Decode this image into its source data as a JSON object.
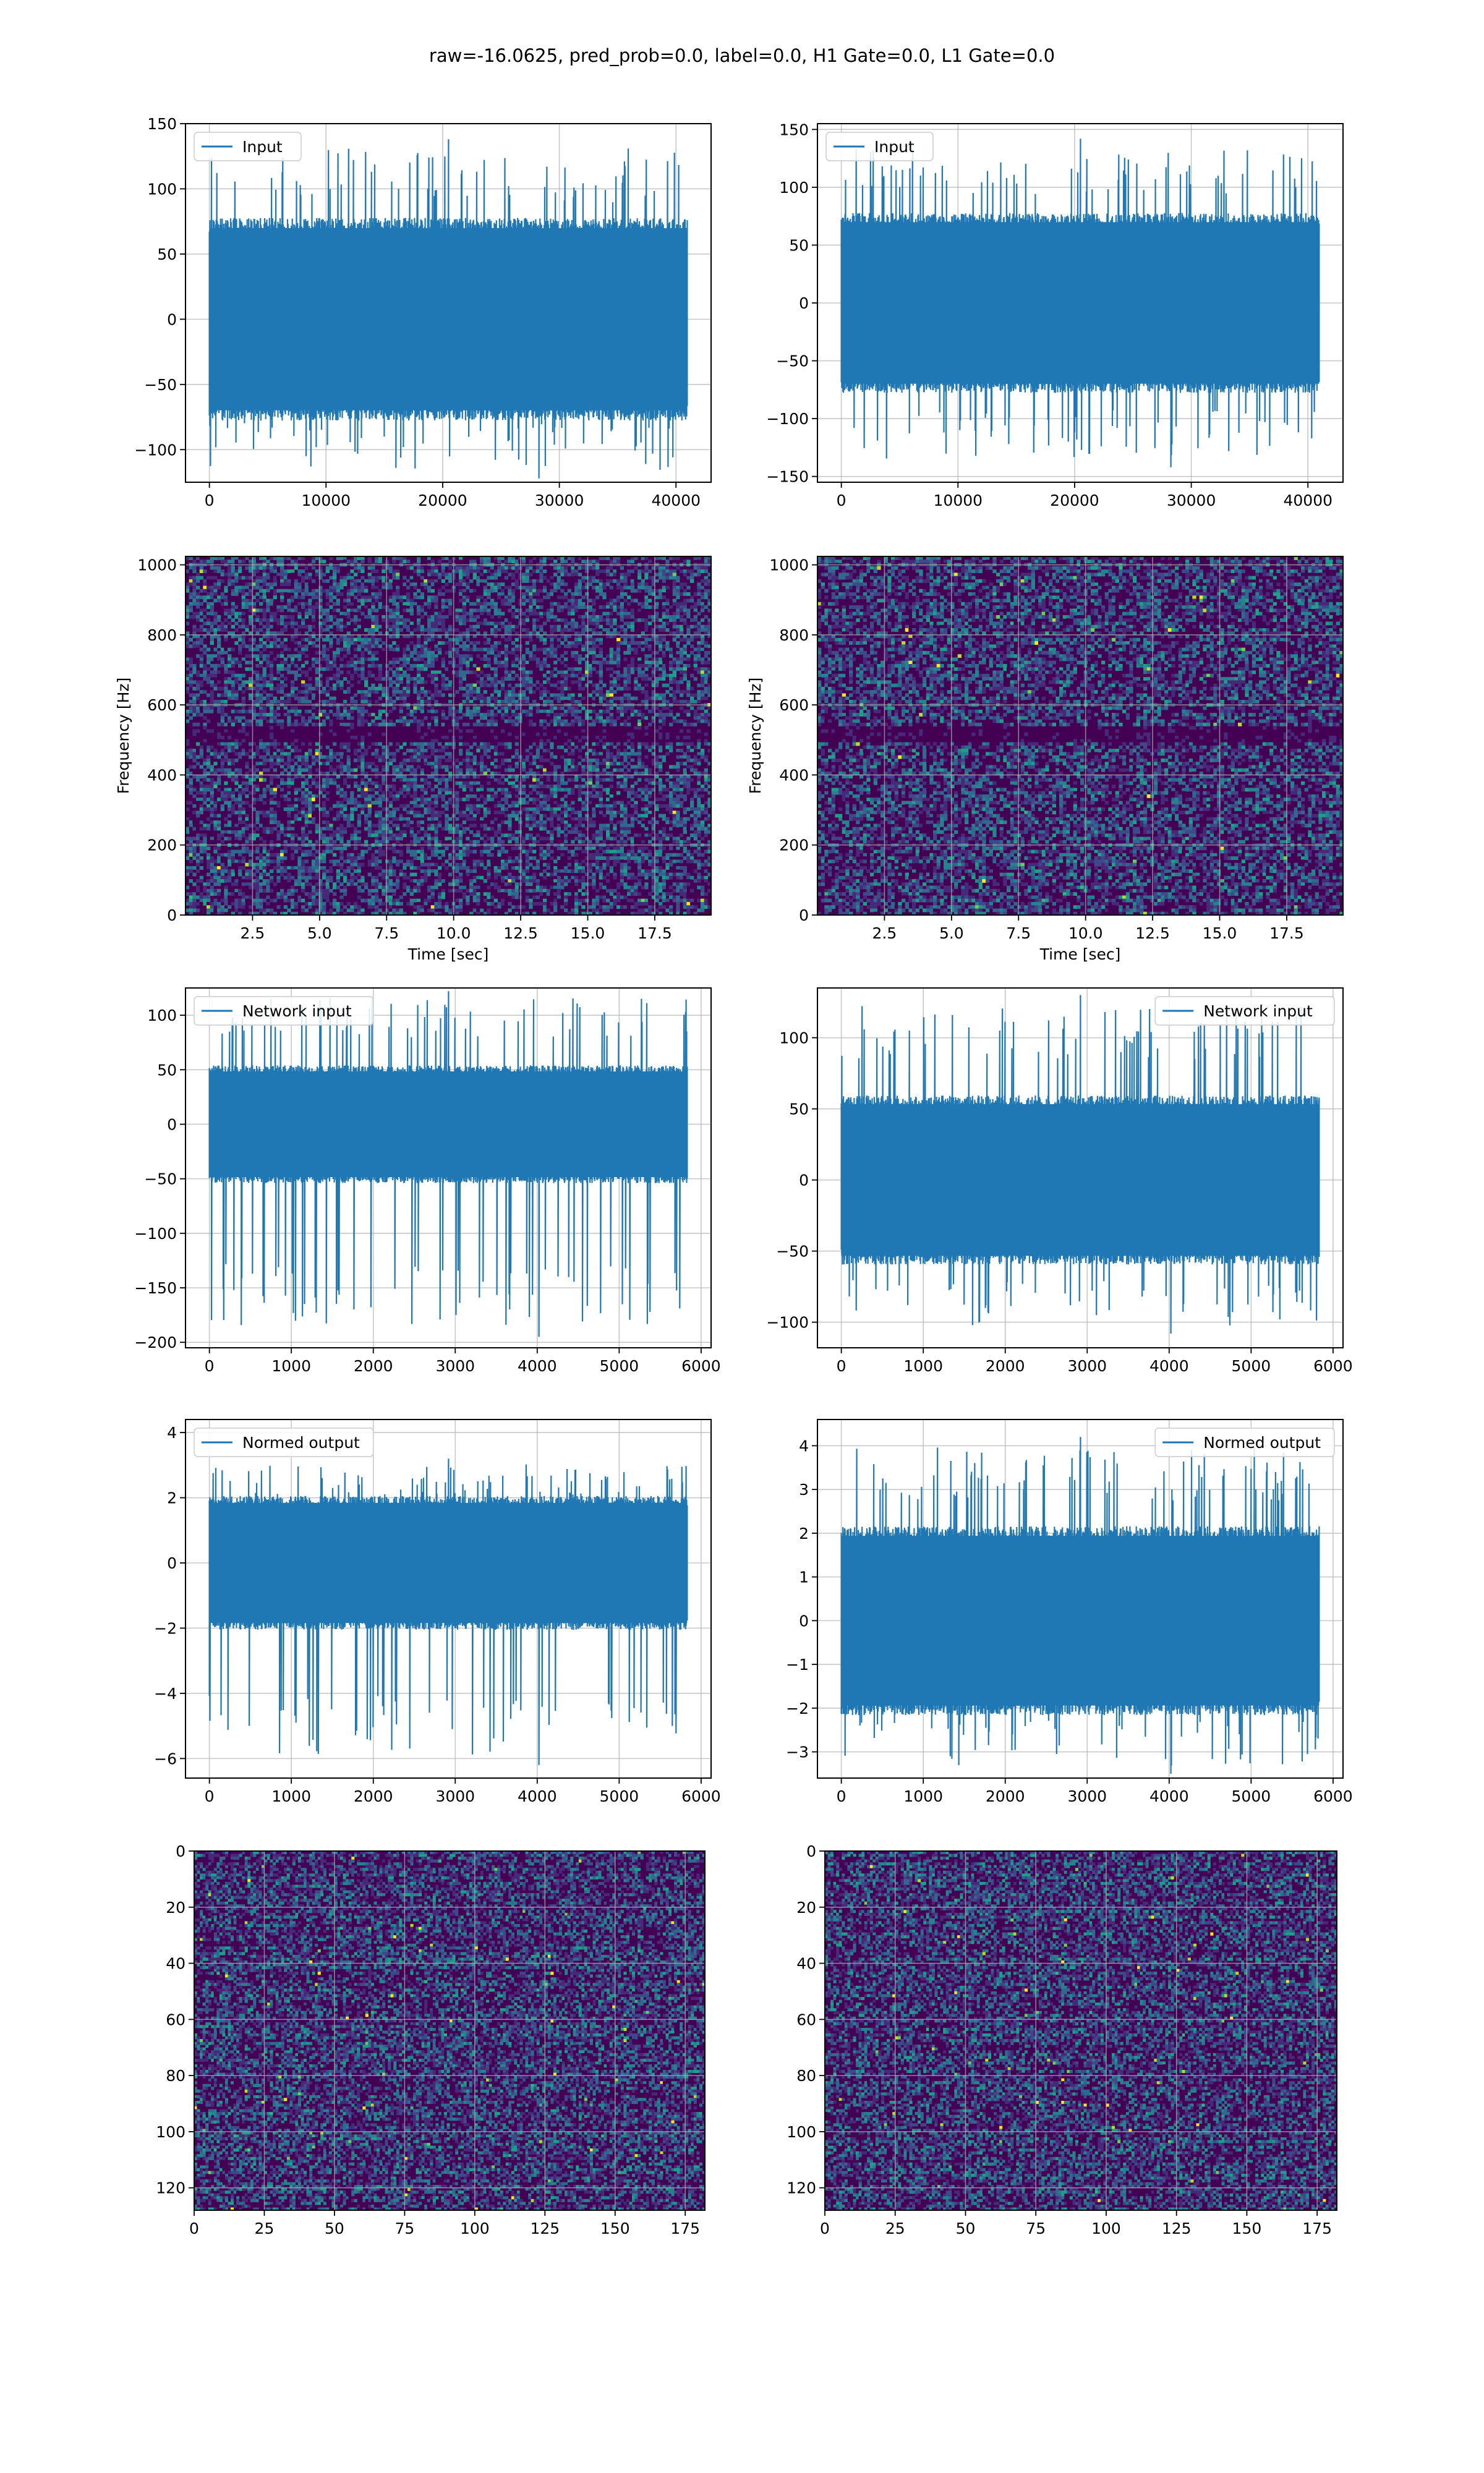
{
  "figure": {
    "suptitle": "raw=-16.0625, pred_prob=0.0, label=0.0, H1 Gate=0.0, L1 Gate=0.0"
  },
  "colors": {
    "series": "#1f77b4",
    "grid": "#b0b0b0",
    "viridis": [
      "#440154",
      "#482878",
      "#3e4989",
      "#31688e",
      "#26828e",
      "#1f9e89",
      "#35b779",
      "#6ece58",
      "#b5de2b",
      "#fde725"
    ]
  },
  "chart_data": [
    {
      "id": "input-h1",
      "type": "line",
      "legend": "Input",
      "legend_loc": "upper left",
      "x_range": [
        0,
        40960
      ],
      "ylim": [
        -125,
        150
      ],
      "xticks": [
        0,
        10000,
        20000,
        30000,
        40000
      ],
      "yticks": [
        -100,
        -50,
        0,
        50,
        100,
        150
      ],
      "xlabel": "",
      "ylabel": "",
      "signal": {
        "band": [
          -72,
          72
        ],
        "spike_max": 138,
        "spike_min": -122
      }
    },
    {
      "id": "input-l1",
      "type": "line",
      "legend": "Input",
      "legend_loc": "upper left",
      "x_range": [
        0,
        40960
      ],
      "ylim": [
        -155,
        155
      ],
      "xticks": [
        0,
        10000,
        20000,
        30000,
        40000
      ],
      "yticks": [
        -150,
        -100,
        -50,
        0,
        50,
        100,
        150
      ],
      "xlabel": "",
      "ylabel": "",
      "signal": {
        "band": [
          -72,
          72
        ],
        "spike_max": 142,
        "spike_min": -142
      }
    },
    {
      "id": "spectrogram-h1",
      "type": "heatmap",
      "xlim": [
        0,
        19.6
      ],
      "ylim": [
        0,
        1024
      ],
      "xticks": [
        2.5,
        5.0,
        7.5,
        10.0,
        12.5,
        15.0,
        17.5
      ],
      "xtick_labels": [
        "2.5",
        "5.0",
        "7.5",
        "10.0",
        "12.5",
        "15.0",
        "17.5"
      ],
      "yticks": [
        0,
        200,
        400,
        600,
        800,
        1000
      ],
      "xlabel": "Time [sec]",
      "ylabel": "Frequency [Hz]"
    },
    {
      "id": "spectrogram-l1",
      "type": "heatmap",
      "xlim": [
        0,
        19.6
      ],
      "ylim": [
        0,
        1024
      ],
      "xticks": [
        2.5,
        5.0,
        7.5,
        10.0,
        12.5,
        15.0,
        17.5
      ],
      "xtick_labels": [
        "2.5",
        "5.0",
        "7.5",
        "10.0",
        "12.5",
        "15.0",
        "17.5"
      ],
      "yticks": [
        0,
        200,
        400,
        600,
        800,
        1000
      ],
      "xlabel": "Time [sec]",
      "ylabel": "Frequency [Hz]"
    },
    {
      "id": "network-input-h1",
      "type": "line",
      "legend": "Network input",
      "legend_loc": "upper left",
      "x_range": [
        0,
        5830
      ],
      "ylim": [
        -205,
        125
      ],
      "xticks": [
        0,
        1000,
        2000,
        3000,
        4000,
        5000,
        6000
      ],
      "yticks": [
        -200,
        -150,
        -100,
        -50,
        0,
        50,
        100
      ],
      "xlabel": "",
      "ylabel": "",
      "signal": {
        "band": [
          -50,
          50
        ],
        "spike_max": 122,
        "spike_min": -195
      }
    },
    {
      "id": "network-input-l1",
      "type": "line",
      "legend": "Network input",
      "legend_loc": "upper right",
      "x_range": [
        0,
        5830
      ],
      "ylim": [
        -118,
        135
      ],
      "xticks": [
        0,
        1000,
        2000,
        3000,
        4000,
        5000,
        6000
      ],
      "yticks": [
        -100,
        -50,
        0,
        50,
        100
      ],
      "xlabel": "",
      "ylabel": "",
      "signal": {
        "band": [
          -55,
          55
        ],
        "spike_max": 130,
        "spike_min": -108
      }
    },
    {
      "id": "normed-output-h1",
      "type": "line",
      "legend": "Normed output",
      "legend_loc": "upper left",
      "x_range": [
        0,
        5830
      ],
      "ylim": [
        -6.6,
        4.4
      ],
      "xticks": [
        0,
        1000,
        2000,
        3000,
        4000,
        5000,
        6000
      ],
      "yticks": [
        -6,
        -4,
        -2,
        0,
        2,
        4
      ],
      "xlabel": "",
      "ylabel": "",
      "signal": {
        "band": [
          -1.9,
          1.9
        ],
        "spike_max": 3.2,
        "spike_min": -6.2
      }
    },
    {
      "id": "normed-output-l1",
      "type": "line",
      "legend": "Normed output",
      "legend_loc": "upper right",
      "x_range": [
        0,
        5830
      ],
      "ylim": [
        -3.6,
        4.6
      ],
      "xticks": [
        0,
        1000,
        2000,
        3000,
        4000,
        5000,
        6000
      ],
      "yticks": [
        -3,
        -2,
        -1,
        0,
        1,
        2,
        3,
        4
      ],
      "xlabel": "",
      "ylabel": "",
      "signal": {
        "band": [
          -2.0,
          2.0
        ],
        "spike_max": 4.2,
        "spike_min": -3.5
      }
    },
    {
      "id": "feature-map-h1",
      "type": "heatmap",
      "xlim": [
        0,
        182
      ],
      "ylim": [
        128,
        0
      ],
      "xticks": [
        0,
        25,
        50,
        75,
        100,
        125,
        150,
        175
      ],
      "yticks": [
        0,
        20,
        40,
        60,
        80,
        100,
        120
      ],
      "xlabel": "",
      "ylabel": ""
    },
    {
      "id": "feature-map-l1",
      "type": "heatmap",
      "xlim": [
        0,
        182
      ],
      "ylim": [
        128,
        0
      ],
      "xticks": [
        0,
        25,
        50,
        75,
        100,
        125,
        150,
        175
      ],
      "yticks": [
        0,
        20,
        40,
        60,
        80,
        100,
        120
      ],
      "xlabel": "",
      "ylabel": ""
    }
  ]
}
